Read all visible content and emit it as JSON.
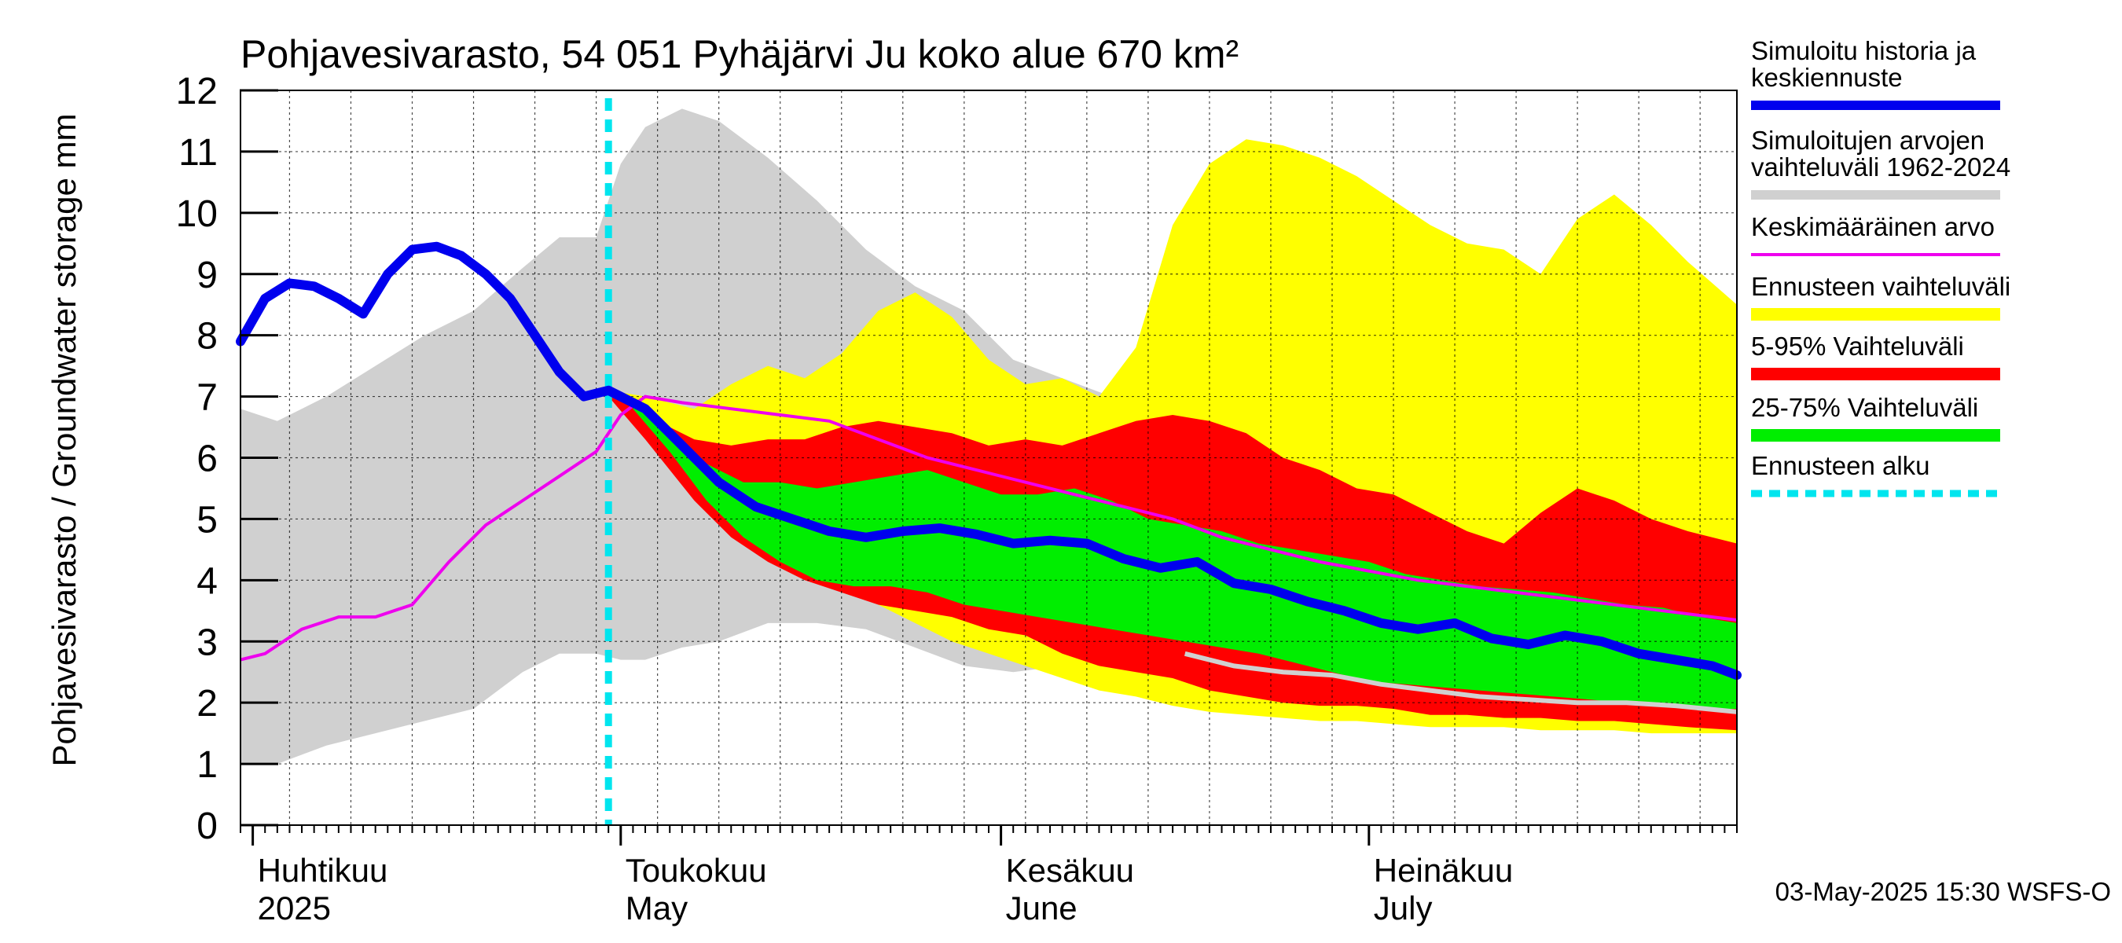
{
  "chart_data": {
    "type": "area",
    "title": "Pohjavesivarasto, 54 051 Pyhäjärvi Ju koko alue 670 km²",
    "ylabel": "Pohjavesivarasto / Groundwater storage   mm",
    "ylim": [
      0,
      12
    ],
    "yticks": [
      0,
      1,
      2,
      3,
      4,
      5,
      6,
      7,
      8,
      9,
      10,
      11,
      12
    ],
    "xlim": [
      "2025-03-31",
      "2025-07-31"
    ],
    "grid": true,
    "x_month_labels": [
      {
        "date": "2025-04-01",
        "fi": "Huhtikuu",
        "en": "2025"
      },
      {
        "date": "2025-05-01",
        "fi": "Toukokuu",
        "en": "May"
      },
      {
        "date": "2025-06-01",
        "fi": "Kesäkuu",
        "en": "June"
      },
      {
        "date": "2025-07-01",
        "fi": "Heinäkuu",
        "en": "July"
      }
    ],
    "forecast_start": "2025-04-30",
    "footer": "03-May-2025 15:30 WSFS-O",
    "legend_position": "right",
    "colors": {
      "history": "#0000ee",
      "hist_range": "#d0d0d0",
      "mean": "#ee00ee",
      "forecast_range": "#ffff00",
      "p5_95": "#ff0000",
      "p25_75": "#00ee00",
      "forecast_start": "#00e5ee"
    },
    "legend": [
      {
        "key": "history",
        "lines": [
          "Simuloitu historia ja",
          "keskiennuste"
        ]
      },
      {
        "key": "hist_range",
        "lines": [
          "Simuloitujen arvojen",
          "vaihteluväli 1962-2024"
        ]
      },
      {
        "key": "mean",
        "lines": [
          "Keskimääräinen arvo"
        ]
      },
      {
        "key": "forecast_range",
        "lines": [
          "Ennusteen vaihteluväli"
        ]
      },
      {
        "key": "p5_95",
        "lines": [
          "5-95% Vaihteluväli"
        ]
      },
      {
        "key": "p25_75",
        "lines": [
          "25-75% Vaihteluväli"
        ]
      },
      {
        "key": "forecast_start",
        "lines": [
          "Ennusteen alku"
        ]
      }
    ],
    "series": {
      "hist_range": {
        "x": [
          "2025-03-31",
          "2025-04-03",
          "2025-04-07",
          "2025-04-11",
          "2025-04-15",
          "2025-04-19",
          "2025-04-23",
          "2025-04-26",
          "2025-04-29",
          "2025-05-01",
          "2025-05-03",
          "2025-05-06",
          "2025-05-09",
          "2025-05-13",
          "2025-05-17",
          "2025-05-21",
          "2025-05-25",
          "2025-05-29",
          "2025-06-02",
          "2025-06-06",
          "2025-06-10",
          "2025-06-13",
          "2025-06-16",
          "2025-06-20",
          "2025-06-24",
          "2025-06-28",
          "2025-07-02",
          "2025-07-06",
          "2025-07-10",
          "2025-07-14",
          "2025-07-18",
          "2025-07-22",
          "2025-07-26",
          "2025-07-31"
        ],
        "upper": [
          6.8,
          6.6,
          7.0,
          7.5,
          8.0,
          8.4,
          9.1,
          9.6,
          9.6,
          10.8,
          11.4,
          11.7,
          11.5,
          10.9,
          10.2,
          9.4,
          8.8,
          8.4,
          7.6,
          7.3,
          7.0,
          7.6,
          7.9,
          8.1,
          8.0,
          8.2,
          8.4,
          8.4,
          8.5,
          8.3,
          8.1,
          8.2,
          8.0,
          7.8
        ],
        "lower": [
          1.0,
          1.0,
          1.3,
          1.5,
          1.7,
          1.9,
          2.5,
          2.8,
          2.8,
          2.7,
          2.7,
          2.9,
          3.0,
          3.3,
          3.3,
          3.2,
          2.9,
          2.6,
          2.5,
          2.6,
          2.5,
          2.5,
          2.5,
          2.4,
          2.3,
          2.2,
          2.1,
          2.05,
          2.0,
          2.0,
          1.95,
          1.9,
          1.85,
          1.8
        ]
      },
      "forecast_range": {
        "x": [
          "2025-04-30",
          "2025-05-03",
          "2025-05-07",
          "2025-05-10",
          "2025-05-13",
          "2025-05-16",
          "2025-05-19",
          "2025-05-22",
          "2025-05-25",
          "2025-05-28",
          "2025-05-31",
          "2025-06-03",
          "2025-06-06",
          "2025-06-09",
          "2025-06-12",
          "2025-06-15",
          "2025-06-18",
          "2025-06-21",
          "2025-06-24",
          "2025-06-27",
          "2025-06-30",
          "2025-07-03",
          "2025-07-06",
          "2025-07-09",
          "2025-07-12",
          "2025-07-15",
          "2025-07-18",
          "2025-07-21",
          "2025-07-24",
          "2025-07-27",
          "2025-07-31"
        ],
        "upper": [
          7.1,
          7.0,
          6.8,
          7.2,
          7.5,
          7.3,
          7.7,
          8.4,
          8.7,
          8.3,
          7.6,
          7.2,
          7.3,
          7.0,
          7.8,
          9.8,
          10.8,
          11.2,
          11.1,
          10.9,
          10.6,
          10.2,
          9.8,
          9.5,
          9.4,
          9.0,
          9.9,
          10.3,
          9.8,
          9.2,
          8.5
        ],
        "lower": [
          7.0,
          6.4,
          5.5,
          4.9,
          4.5,
          4.2,
          3.9,
          3.6,
          3.3,
          3.0,
          2.8,
          2.6,
          2.4,
          2.2,
          2.1,
          1.95,
          1.85,
          1.8,
          1.75,
          1.7,
          1.7,
          1.65,
          1.6,
          1.6,
          1.6,
          1.55,
          1.55,
          1.55,
          1.5,
          1.5,
          1.5
        ]
      },
      "p5_95": {
        "x": [
          "2025-04-30",
          "2025-05-03",
          "2025-05-07",
          "2025-05-10",
          "2025-05-13",
          "2025-05-16",
          "2025-05-19",
          "2025-05-22",
          "2025-05-25",
          "2025-05-28",
          "2025-05-31",
          "2025-06-03",
          "2025-06-06",
          "2025-06-09",
          "2025-06-12",
          "2025-06-15",
          "2025-06-18",
          "2025-06-21",
          "2025-06-24",
          "2025-06-27",
          "2025-06-30",
          "2025-07-03",
          "2025-07-06",
          "2025-07-09",
          "2025-07-12",
          "2025-07-15",
          "2025-07-18",
          "2025-07-21",
          "2025-07-24",
          "2025-07-27",
          "2025-07-31"
        ],
        "upper": [
          7.1,
          6.7,
          6.3,
          6.2,
          6.3,
          6.3,
          6.5,
          6.6,
          6.5,
          6.4,
          6.2,
          6.3,
          6.2,
          6.4,
          6.6,
          6.7,
          6.6,
          6.4,
          6.0,
          5.8,
          5.5,
          5.4,
          5.1,
          4.8,
          4.6,
          5.1,
          5.5,
          5.3,
          5.0,
          4.8,
          4.6
        ],
        "lower": [
          7.0,
          6.3,
          5.3,
          4.7,
          4.3,
          4.0,
          3.8,
          3.6,
          3.5,
          3.4,
          3.2,
          3.1,
          2.8,
          2.6,
          2.5,
          2.4,
          2.2,
          2.1,
          2.0,
          1.95,
          1.95,
          1.9,
          1.8,
          1.8,
          1.75,
          1.75,
          1.7,
          1.7,
          1.65,
          1.6,
          1.55
        ]
      },
      "p25_75": {
        "x": [
          "2025-05-02",
          "2025-05-05",
          "2025-05-08",
          "2025-05-11",
          "2025-05-14",
          "2025-05-17",
          "2025-05-20",
          "2025-05-23",
          "2025-05-26",
          "2025-05-29",
          "2025-06-01",
          "2025-06-04",
          "2025-06-07",
          "2025-06-10",
          "2025-06-13",
          "2025-06-16",
          "2025-06-19",
          "2025-06-22",
          "2025-06-25",
          "2025-06-28",
          "2025-07-01",
          "2025-07-04",
          "2025-07-07",
          "2025-07-10",
          "2025-07-13",
          "2025-07-16",
          "2025-07-19",
          "2025-07-22",
          "2025-07-25",
          "2025-07-28",
          "2025-07-31"
        ],
        "upper": [
          6.9,
          6.4,
          5.9,
          5.6,
          5.6,
          5.5,
          5.6,
          5.7,
          5.8,
          5.6,
          5.4,
          5.4,
          5.5,
          5.3,
          5.0,
          4.9,
          4.8,
          4.6,
          4.5,
          4.4,
          4.3,
          4.1,
          4.0,
          3.9,
          3.85,
          3.8,
          3.7,
          3.6,
          3.55,
          3.4,
          3.3
        ],
        "lower": [
          6.8,
          6.1,
          5.3,
          4.7,
          4.3,
          4.0,
          3.9,
          3.9,
          3.8,
          3.6,
          3.5,
          3.4,
          3.3,
          3.2,
          3.1,
          3.0,
          2.9,
          2.8,
          2.65,
          2.5,
          2.35,
          2.3,
          2.25,
          2.2,
          2.15,
          2.1,
          2.05,
          2.0,
          1.95,
          1.9,
          1.9
        ]
      },
      "mean": {
        "x": [
          "2025-03-31",
          "2025-04-02",
          "2025-04-05",
          "2025-04-08",
          "2025-04-11",
          "2025-04-14",
          "2025-04-17",
          "2025-04-20",
          "2025-04-23",
          "2025-04-26",
          "2025-04-29",
          "2025-05-01",
          "2025-05-03",
          "2025-05-06",
          "2025-05-10",
          "2025-05-14",
          "2025-05-18",
          "2025-05-22",
          "2025-05-26",
          "2025-05-30",
          "2025-06-03",
          "2025-06-07",
          "2025-06-11",
          "2025-06-15",
          "2025-06-19",
          "2025-06-23",
          "2025-06-27",
          "2025-07-01",
          "2025-07-05",
          "2025-07-09",
          "2025-07-13",
          "2025-07-17",
          "2025-07-21",
          "2025-07-25",
          "2025-07-31"
        ],
        "values": [
          2.7,
          2.8,
          3.2,
          3.4,
          3.4,
          3.6,
          4.3,
          4.9,
          5.3,
          5.7,
          6.1,
          6.7,
          7.0,
          6.9,
          6.8,
          6.7,
          6.6,
          6.3,
          6.0,
          5.8,
          5.6,
          5.4,
          5.2,
          5.0,
          4.7,
          4.5,
          4.3,
          4.15,
          4.0,
          3.9,
          3.8,
          3.7,
          3.6,
          3.5,
          3.35
        ]
      },
      "median": {
        "x": [
          "2025-06-16",
          "2025-06-20",
          "2025-06-24",
          "2025-06-28",
          "2025-07-02",
          "2025-07-06",
          "2025-07-10",
          "2025-07-14",
          "2025-07-18",
          "2025-07-22",
          "2025-07-26",
          "2025-07-31"
        ],
        "values": [
          2.8,
          2.6,
          2.5,
          2.45,
          2.3,
          2.2,
          2.1,
          2.05,
          2.0,
          2.0,
          1.95,
          1.85
        ]
      },
      "history": {
        "x": [
          "2025-03-31",
          "2025-04-02",
          "2025-04-04",
          "2025-04-06",
          "2025-04-08",
          "2025-04-10",
          "2025-04-12",
          "2025-04-14",
          "2025-04-16",
          "2025-04-18",
          "2025-04-20",
          "2025-04-22",
          "2025-04-24",
          "2025-04-26",
          "2025-04-28",
          "2025-04-30",
          "2025-05-03",
          "2025-05-06",
          "2025-05-09",
          "2025-05-12",
          "2025-05-15",
          "2025-05-18",
          "2025-05-21",
          "2025-05-24",
          "2025-05-27",
          "2025-05-30",
          "2025-06-02",
          "2025-06-05",
          "2025-06-08",
          "2025-06-11",
          "2025-06-14",
          "2025-06-17",
          "2025-06-20",
          "2025-06-23",
          "2025-06-26",
          "2025-06-29",
          "2025-07-02",
          "2025-07-05",
          "2025-07-08",
          "2025-07-11",
          "2025-07-14",
          "2025-07-17",
          "2025-07-20",
          "2025-07-23",
          "2025-07-26",
          "2025-07-29",
          "2025-07-31"
        ],
        "values": [
          7.9,
          8.6,
          8.85,
          8.8,
          8.6,
          8.35,
          9.0,
          9.4,
          9.45,
          9.3,
          9.0,
          8.6,
          8.0,
          7.4,
          7.0,
          7.1,
          6.8,
          6.2,
          5.6,
          5.2,
          5.0,
          4.8,
          4.7,
          4.8,
          4.85,
          4.75,
          4.6,
          4.65,
          4.6,
          4.35,
          4.2,
          4.3,
          3.95,
          3.85,
          3.65,
          3.5,
          3.3,
          3.2,
          3.3,
          3.05,
          2.95,
          3.1,
          3.0,
          2.8,
          2.7,
          2.6,
          2.45
        ]
      }
    }
  }
}
